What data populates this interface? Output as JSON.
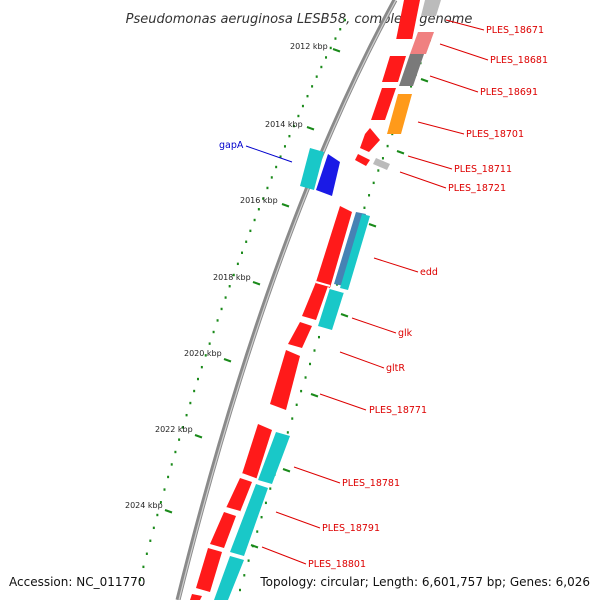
{
  "title": "Pseudomonas aeruginosa LESB58, complete genome",
  "footer": {
    "accession": "Accession: NC_011770",
    "topology": "Topology: circular; Length: 6,601,757 bp; Genes: 6,026"
  },
  "colors": {
    "backbone": "#8a8a8a",
    "tick": "#1a8a1a",
    "gene_red": "#ff1a1a",
    "gene_cyan": "#19c8c8",
    "gene_blue": "#1a1ae6",
    "gene_orange": "#ff9a1a",
    "gene_grey": "#7a7a7a",
    "gene_pink": "#f08080",
    "gene_lightgrey": "#bbbbbb",
    "gene_steel": "#4682b4",
    "label_red": "#dd0000",
    "label_blue": "#0000cc"
  },
  "kbp_labels": [
    "2012 kbp",
    "2014 kbp",
    "2016 kbp",
    "2018 kbp",
    "2020 kbp",
    "2022 kbp",
    "2024 kbp"
  ],
  "gene_labels": [
    {
      "name": "PLES_18671",
      "color": "label_red"
    },
    {
      "name": "PLES_18681",
      "color": "label_red"
    },
    {
      "name": "PLES_18691",
      "color": "label_red"
    },
    {
      "name": "PLES_18701",
      "color": "label_red"
    },
    {
      "name": "PLES_18711",
      "color": "label_red"
    },
    {
      "name": "PLES_18721",
      "color": "label_red"
    },
    {
      "name": "edd",
      "color": "label_red"
    },
    {
      "name": "glk",
      "color": "label_red"
    },
    {
      "name": "gltR",
      "color": "label_red"
    },
    {
      "name": "PLES_18771",
      "color": "label_red"
    },
    {
      "name": "PLES_18781",
      "color": "label_red"
    },
    {
      "name": "PLES_18791",
      "color": "label_red"
    },
    {
      "name": "PLES_18801",
      "color": "label_red"
    },
    {
      "name": "gapA",
      "color": "label_blue"
    }
  ]
}
